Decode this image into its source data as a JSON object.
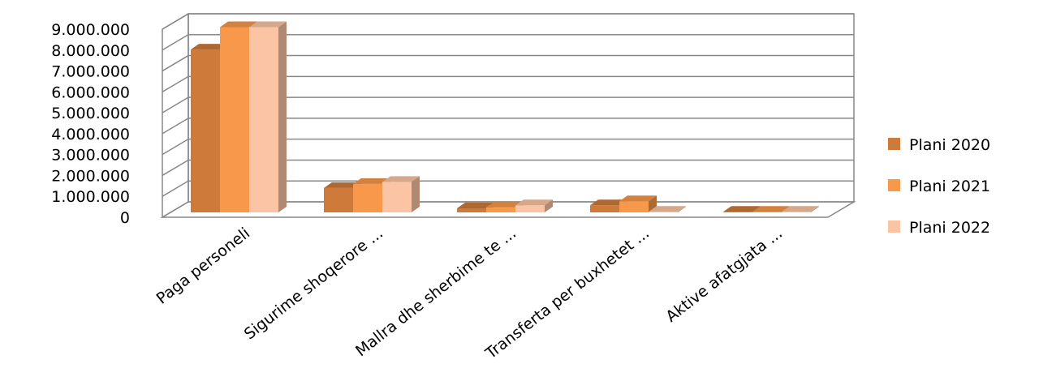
{
  "chart_data": {
    "type": "bar",
    "title": "",
    "xlabel": "",
    "ylabel": "",
    "ylim": [
      0,
      9000000
    ],
    "y_ticks": [
      "0",
      "1.000.000",
      "2.000.000",
      "3.000.000",
      "4.000.000",
      "5.000.000",
      "6.000.000",
      "7.000.000",
      "8.000.000",
      "9.000.000"
    ],
    "categories": [
      "Paga personeli",
      "Sigurime shoqerore ...",
      "Mallra dhe sherbime te ...",
      "Transferta per buxhetet ...",
      "Aktive afatgjata ..."
    ],
    "series": [
      {
        "name": "Plani 2020",
        "color": "#CD7A3A",
        "values": [
          8000000,
          1200000,
          200000,
          350000,
          30000
        ]
      },
      {
        "name": "Plani 2021",
        "color": "#F7984A",
        "values": [
          9100000,
          1400000,
          250000,
          550000,
          30000
        ]
      },
      {
        "name": "Plani 2022",
        "color": "#FBC4A4",
        "values": [
          9100000,
          1500000,
          350000,
          30000,
          30000
        ]
      }
    ],
    "legend_position": "right",
    "grid": true,
    "style": "3d-clustered-column"
  }
}
